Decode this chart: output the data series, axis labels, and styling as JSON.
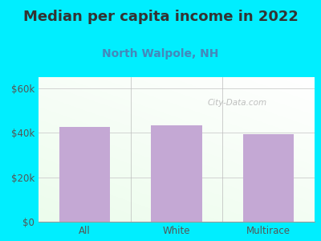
{
  "title": "Median per capita income in 2022",
  "subtitle": "North Walpole, NH",
  "categories": [
    "All",
    "White",
    "Multirace"
  ],
  "values": [
    42500,
    43500,
    39500
  ],
  "bar_color": "#c4a8d4",
  "title_fontsize": 13,
  "subtitle_fontsize": 10,
  "subtitle_color": "#4488bb",
  "title_color": "#333333",
  "background_outer": "#00eeff",
  "bg_color_topleft": "#d8eedd",
  "bg_color_topright": "#f0f8f8",
  "bg_color_bottom": "#e8f5e0",
  "tick_color": "#555555",
  "yticks": [
    0,
    20000,
    40000,
    60000
  ],
  "ytick_labels": [
    "$0",
    "$20k",
    "$40k",
    "$60k"
  ],
  "ylim": [
    0,
    65000
  ],
  "watermark": "City-Data.com"
}
